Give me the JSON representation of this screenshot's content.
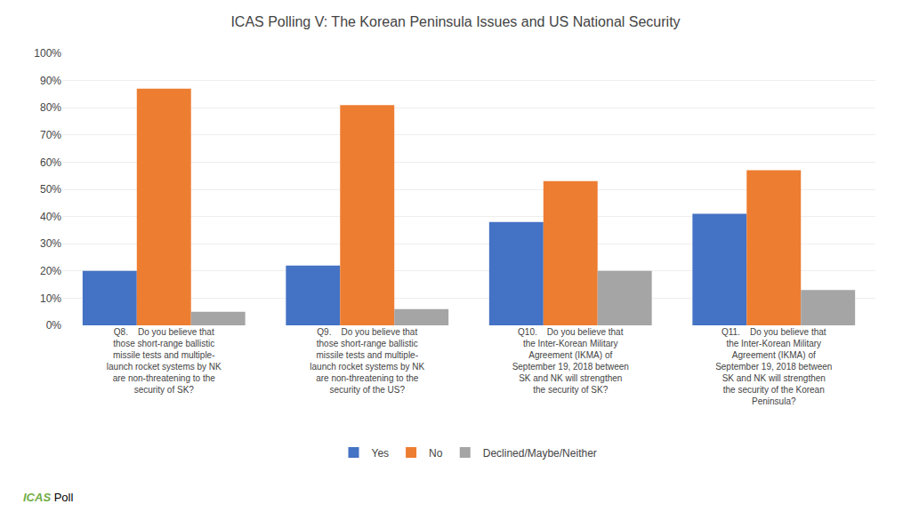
{
  "chart_data": {
    "type": "bar",
    "title": "ICAS Polling V: The Korean Peninsula Issues and US National Security",
    "categories": [
      "Q8.    Do you believe that\nthose short-range ballistic\nmissile tests and multiple-\nlaunch rocket systems by NK\nare non-threatening to the\nsecurity of SK?",
      "Q9.    Do you believe that\nthose short-range ballistic\nmissile tests and multiple-\nlaunch rocket systems by NK\nare non-threatening to the\nsecurity of the US?",
      "Q10.    Do you believe that\nthe Inter-Korean Military\nAgreement (IKMA) of\nSeptember 19, 2018 between\nSK and NK will strengthen\nthe security of SK?",
      "Q11.    Do you believe that\nthe Inter-Korean Military\nAgreement (IKMA) of\nSeptember 19, 2018 between\nSK and NK will strengthen\nthe security of the Korean\nPeninsula?"
    ],
    "series": [
      {
        "name": "Yes",
        "color": "#4472C4",
        "values": [
          20,
          22,
          38,
          41
        ]
      },
      {
        "name": "No",
        "color": "#ED7D31",
        "values": [
          87,
          81,
          53,
          57
        ]
      },
      {
        "name": "Declined/Maybe/Neither",
        "color": "#A5A5A5",
        "values": [
          5,
          6,
          20,
          13
        ]
      }
    ],
    "ylim": [
      0,
      100
    ],
    "yticks": [
      {
        "value": 0,
        "label": "0%"
      },
      {
        "value": 10,
        "label": "10%"
      },
      {
        "value": 20,
        "label": "20%"
      },
      {
        "value": 30,
        "label": "30%"
      },
      {
        "value": 40,
        "label": "40%"
      },
      {
        "value": 50,
        "label": "50%"
      },
      {
        "value": 60,
        "label": "60%"
      },
      {
        "value": 70,
        "label": "70%"
      },
      {
        "value": 80,
        "label": "80%"
      },
      {
        "value": 90,
        "label": "90%"
      },
      {
        "value": 100,
        "label": "100%"
      }
    ],
    "grid": true,
    "legend": "bottom",
    "annotations": [
      {
        "text": "ICAS",
        "color": "#70AD47"
      },
      {
        "text": "Poll",
        "color": "#000000"
      }
    ]
  }
}
